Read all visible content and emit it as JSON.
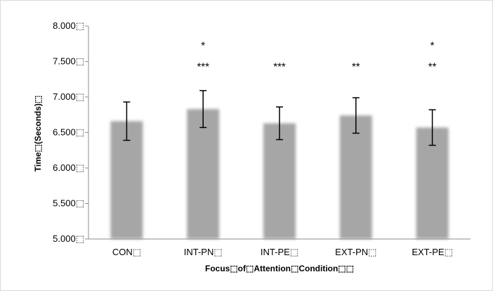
{
  "chart_data": {
    "type": "bar",
    "title": "",
    "xlabel": "Focus⬚of⬚Attention⬚Condition⬚⬚",
    "ylabel": "Time⬚(Seconds)⬚",
    "categories": [
      "CON⬚",
      "INT-PN⬚",
      "INT-PE⬚",
      "EXT-PN⬚",
      "EXT-PE⬚"
    ],
    "values": [
      6.66,
      6.83,
      6.63,
      6.74,
      6.57
    ],
    "error_bars": [
      0.27,
      0.26,
      0.23,
      0.25,
      0.25
    ],
    "ylim": [
      5.0,
      8.0
    ],
    "yticks": [
      5.0,
      5.5,
      6.0,
      6.5,
      7.0,
      7.5,
      8.0
    ],
    "ytick_labels": [
      "5.000⬚",
      "5.500⬚",
      "6.000⬚",
      "6.500⬚",
      "7.000⬚",
      "7.500⬚",
      "8.000⬚"
    ],
    "significance_marks": [
      {
        "category": "INT-PN⬚",
        "top": "*",
        "bottom": "***"
      },
      {
        "category": "INT-PE⬚",
        "top": "",
        "bottom": "***"
      },
      {
        "category": "EXT-PN⬚",
        "top": "",
        "bottom": "**"
      },
      {
        "category": "EXT-PE⬚",
        "top": "*",
        "bottom": "**"
      }
    ],
    "bar_color": "#a6a6a6",
    "grid": false,
    "legend": "none"
  }
}
